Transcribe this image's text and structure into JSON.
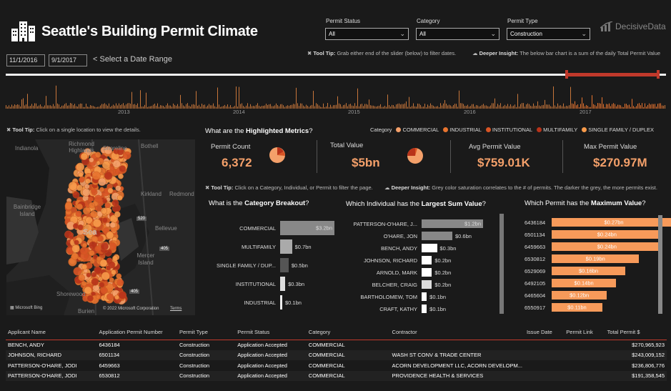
{
  "header": {
    "title": "Seattle's Building Permit Climate",
    "logo_text": "DecisiveData"
  },
  "filters": [
    {
      "label": "Permit Status",
      "value": "All"
    },
    {
      "label": "Category",
      "value": "All"
    },
    {
      "label": "Permit Type",
      "value": "Construction"
    }
  ],
  "dates": {
    "start": "11/1/2016",
    "end": "9/1/2017",
    "hint": "< Select a Date Range"
  },
  "tips": {
    "slider_tip_label": "Tool Tip:",
    "slider_tip_text": "Grab either end of the slider (below) to filter dates.",
    "slider_insight_label": "Deeper Insight:",
    "slider_insight_text": "The below bar chart is a sum of the daily Total Permit Value",
    "map_tip_label": "Tool Tip:",
    "map_tip_text": "Click on a single location to view the details.",
    "chart_tip_label": "Tool Tip:",
    "chart_tip_text": "Click on a Category, Individual, or Permit  to filter the page.",
    "chart_insight_label": "Deeper Insight:",
    "chart_insight_text": "Grey color saturation correlates to the # of permits. The darker the grey, the more permits exist."
  },
  "timeline": {
    "years": [
      "2013",
      "2014",
      "2015",
      "2016",
      "2017"
    ],
    "selection_range": [
      0.857,
      0.995
    ]
  },
  "map": {
    "labels": [
      "Indianola",
      "Richmond Highlands",
      "Shoreline",
      "Bothell",
      "Kirkland",
      "Redmond",
      "Bainbridge Island",
      "Bellevue",
      "Mercer Island",
      "Shorewood",
      "Burien",
      "Sea"
    ],
    "attribution": "© 2022 Microsoft Corporation",
    "terms": "Terms",
    "bing": "Microsoft Bing",
    "road_1": "405",
    "road_2": "520",
    "road_3": "405"
  },
  "metrics": {
    "heading_pre": "What are the ",
    "heading_bold": "Highlighted Metrics",
    "heading_post": "?",
    "legend_label": "Category",
    "legend": [
      {
        "name": "COMMERCIAL",
        "color": "#f4a06a"
      },
      {
        "name": "INDUSTRIAL",
        "color": "#e8742f"
      },
      {
        "name": "INSTITUTIONAL",
        "color": "#d95525"
      },
      {
        "name": "MULTIFAMILY",
        "color": "#b8331a"
      },
      {
        "name": "SINGLE FAMILY / DUPLEX",
        "color": "#f79a4a"
      }
    ],
    "kpis": [
      {
        "label": "Permit Count",
        "value": "6,372"
      },
      {
        "label": "Total Value",
        "value": "$5bn"
      },
      {
        "label": "Avg Permit Value",
        "value": "$759.01K"
      },
      {
        "label": "Max Permit Value",
        "value": "$270.97M"
      }
    ]
  },
  "category_chart": {
    "heading_pre": "What is the ",
    "heading_bold": "Category Breakout",
    "heading_post": "?",
    "items": [
      {
        "label": "COMMERCIAL",
        "value": 3.2,
        "text": "$3.2bn",
        "color": "#888888"
      },
      {
        "label": "MULTIFAMILY",
        "value": 0.7,
        "text": "$0.7bn",
        "color": "#aaaaaa"
      },
      {
        "label": "SINGLE FAMILY / DUP...",
        "value": 0.5,
        "text": "$0.5bn",
        "color": "#555555"
      },
      {
        "label": "INSTITUTIONAL",
        "value": 0.3,
        "text": "$0.3bn",
        "color": "#dddddd"
      },
      {
        "label": "INDUSTRIAL",
        "value": 0.1,
        "text": "$0.1bn",
        "color": "#eeeeee"
      }
    ]
  },
  "individual_chart": {
    "heading_pre": "Which Individual has the ",
    "heading_bold": "Largest Sum Value",
    "heading_post": "?",
    "items": [
      {
        "label": "PATTERSON-O'HARE, J...",
        "value": 1.2,
        "text": "$1.2bn",
        "color": "#888888"
      },
      {
        "label": "O'HARE, JON",
        "value": 0.6,
        "text": "$0.6bn",
        "color": "#888888"
      },
      {
        "label": "BENCH, ANDY",
        "value": 0.3,
        "text": "$0.3bn",
        "color": "#ffffff"
      },
      {
        "label": "JOHNSON, RICHARD",
        "value": 0.2,
        "text": "$0.2bn",
        "color": "#ffffff"
      },
      {
        "label": "ARNOLD, MARK",
        "value": 0.2,
        "text": "$0.2bn",
        "color": "#ffffff"
      },
      {
        "label": "BELCHER, CRAIG",
        "value": 0.2,
        "text": "$0.2bn",
        "color": "#dddddd"
      },
      {
        "label": "BARTHOLOMEW, TOM",
        "value": 0.1,
        "text": "$0.1bn",
        "color": "#ffffff"
      },
      {
        "label": "CRAFT, KATHY",
        "value": 0.1,
        "text": "$0.1bn",
        "color": "#ffffff"
      }
    ]
  },
  "permit_chart": {
    "heading_pre": "Which Permit has the ",
    "heading_bold": "Maximum Value",
    "heading_post": "?",
    "items": [
      {
        "label": "6436184",
        "value": 0.27,
        "text": "$0.27bn"
      },
      {
        "label": "6501134",
        "value": 0.24,
        "text": "$0.24bn"
      },
      {
        "label": "6459663",
        "value": 0.24,
        "text": "$0.24bn"
      },
      {
        "label": "6530812",
        "value": 0.19,
        "text": "$0.19bn"
      },
      {
        "label": "6529069",
        "value": 0.16,
        "text": "$0.16bn"
      },
      {
        "label": "6492105",
        "value": 0.14,
        "text": "$0.14bn"
      },
      {
        "label": "6465604",
        "value": 0.12,
        "text": "$0.12bn"
      },
      {
        "label": "6550917",
        "value": 0.11,
        "text": "$0.11bn"
      }
    ]
  },
  "table": {
    "columns": [
      "Applicant Name",
      "Application Permit Number",
      "Permit Type",
      "Permit Status",
      "Category",
      "Contractor",
      "Issue Date",
      "Permit Link",
      "Total Permit $"
    ],
    "rows": [
      [
        "BENCH, ANDY",
        "6436184",
        "Construction",
        "Application Accepted",
        "COMMERCIAL",
        "",
        "",
        "",
        "$270,965,923"
      ],
      [
        "JOHNSON, RICHARD",
        "6501134",
        "Construction",
        "Application Accepted",
        "COMMERCIAL",
        "WASH ST CONV & TRADE CENTER",
        "",
        "",
        "$243,009,152"
      ],
      [
        "PATTERSON-O'HARE, JODI",
        "6459663",
        "Construction",
        "Application Accepted",
        "COMMERCIAL",
        "ACORN DEVELOPMENT LLC, ACORN DEVELOPM...",
        "",
        "",
        "$236,806,776"
      ],
      [
        "PATTERSON-O'HARE, JODI",
        "6530812",
        "Construction",
        "Application Accepted",
        "COMMERCIAL",
        "PROVIDENCE HEALTH & SERVICES",
        "",
        "",
        "$191,358,545"
      ]
    ]
  }
}
